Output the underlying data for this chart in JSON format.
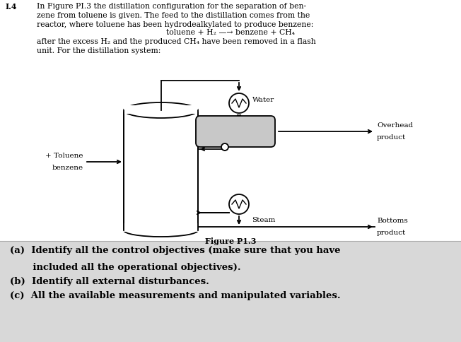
{
  "background_color": "#f2f2f2",
  "top_bg": "#ffffff",
  "bottom_bg": "#d8d8d8",
  "title_number": "I.4",
  "body_text1": "In Figure PI.3 the distillation configuration for the separation of ben-\nzene from toluene is given. The feed to the distillation comes from the\nreactor, where toluene has been hydrodealkylated to produce benzene:",
  "reaction_text": "toluene + H₂ —→ benzene + CH₄",
  "body_text2": "after the excess H₂ and the produced CH₄ have been removed in a flash\nunit. For the distillation system:",
  "figure_caption": "Figure P1.3",
  "label_toluene_line1": "+ Toluene",
  "label_toluene_line2": "benzene",
  "label_water": "Water",
  "label_overhead_line1": "Overhead",
  "label_overhead_line2": "product",
  "label_steam": "Steam",
  "label_bottoms_line1": "Bottoms",
  "label_bottoms_line2": "product",
  "q_a": "(a)  Identify all the control objectives (make sure that you have",
  "q_a2": "       included all the operational objectives).",
  "q_b": "(b)  Identify all external disturbances.",
  "q_c": "(c)  All the available measurements and manipulated variables."
}
